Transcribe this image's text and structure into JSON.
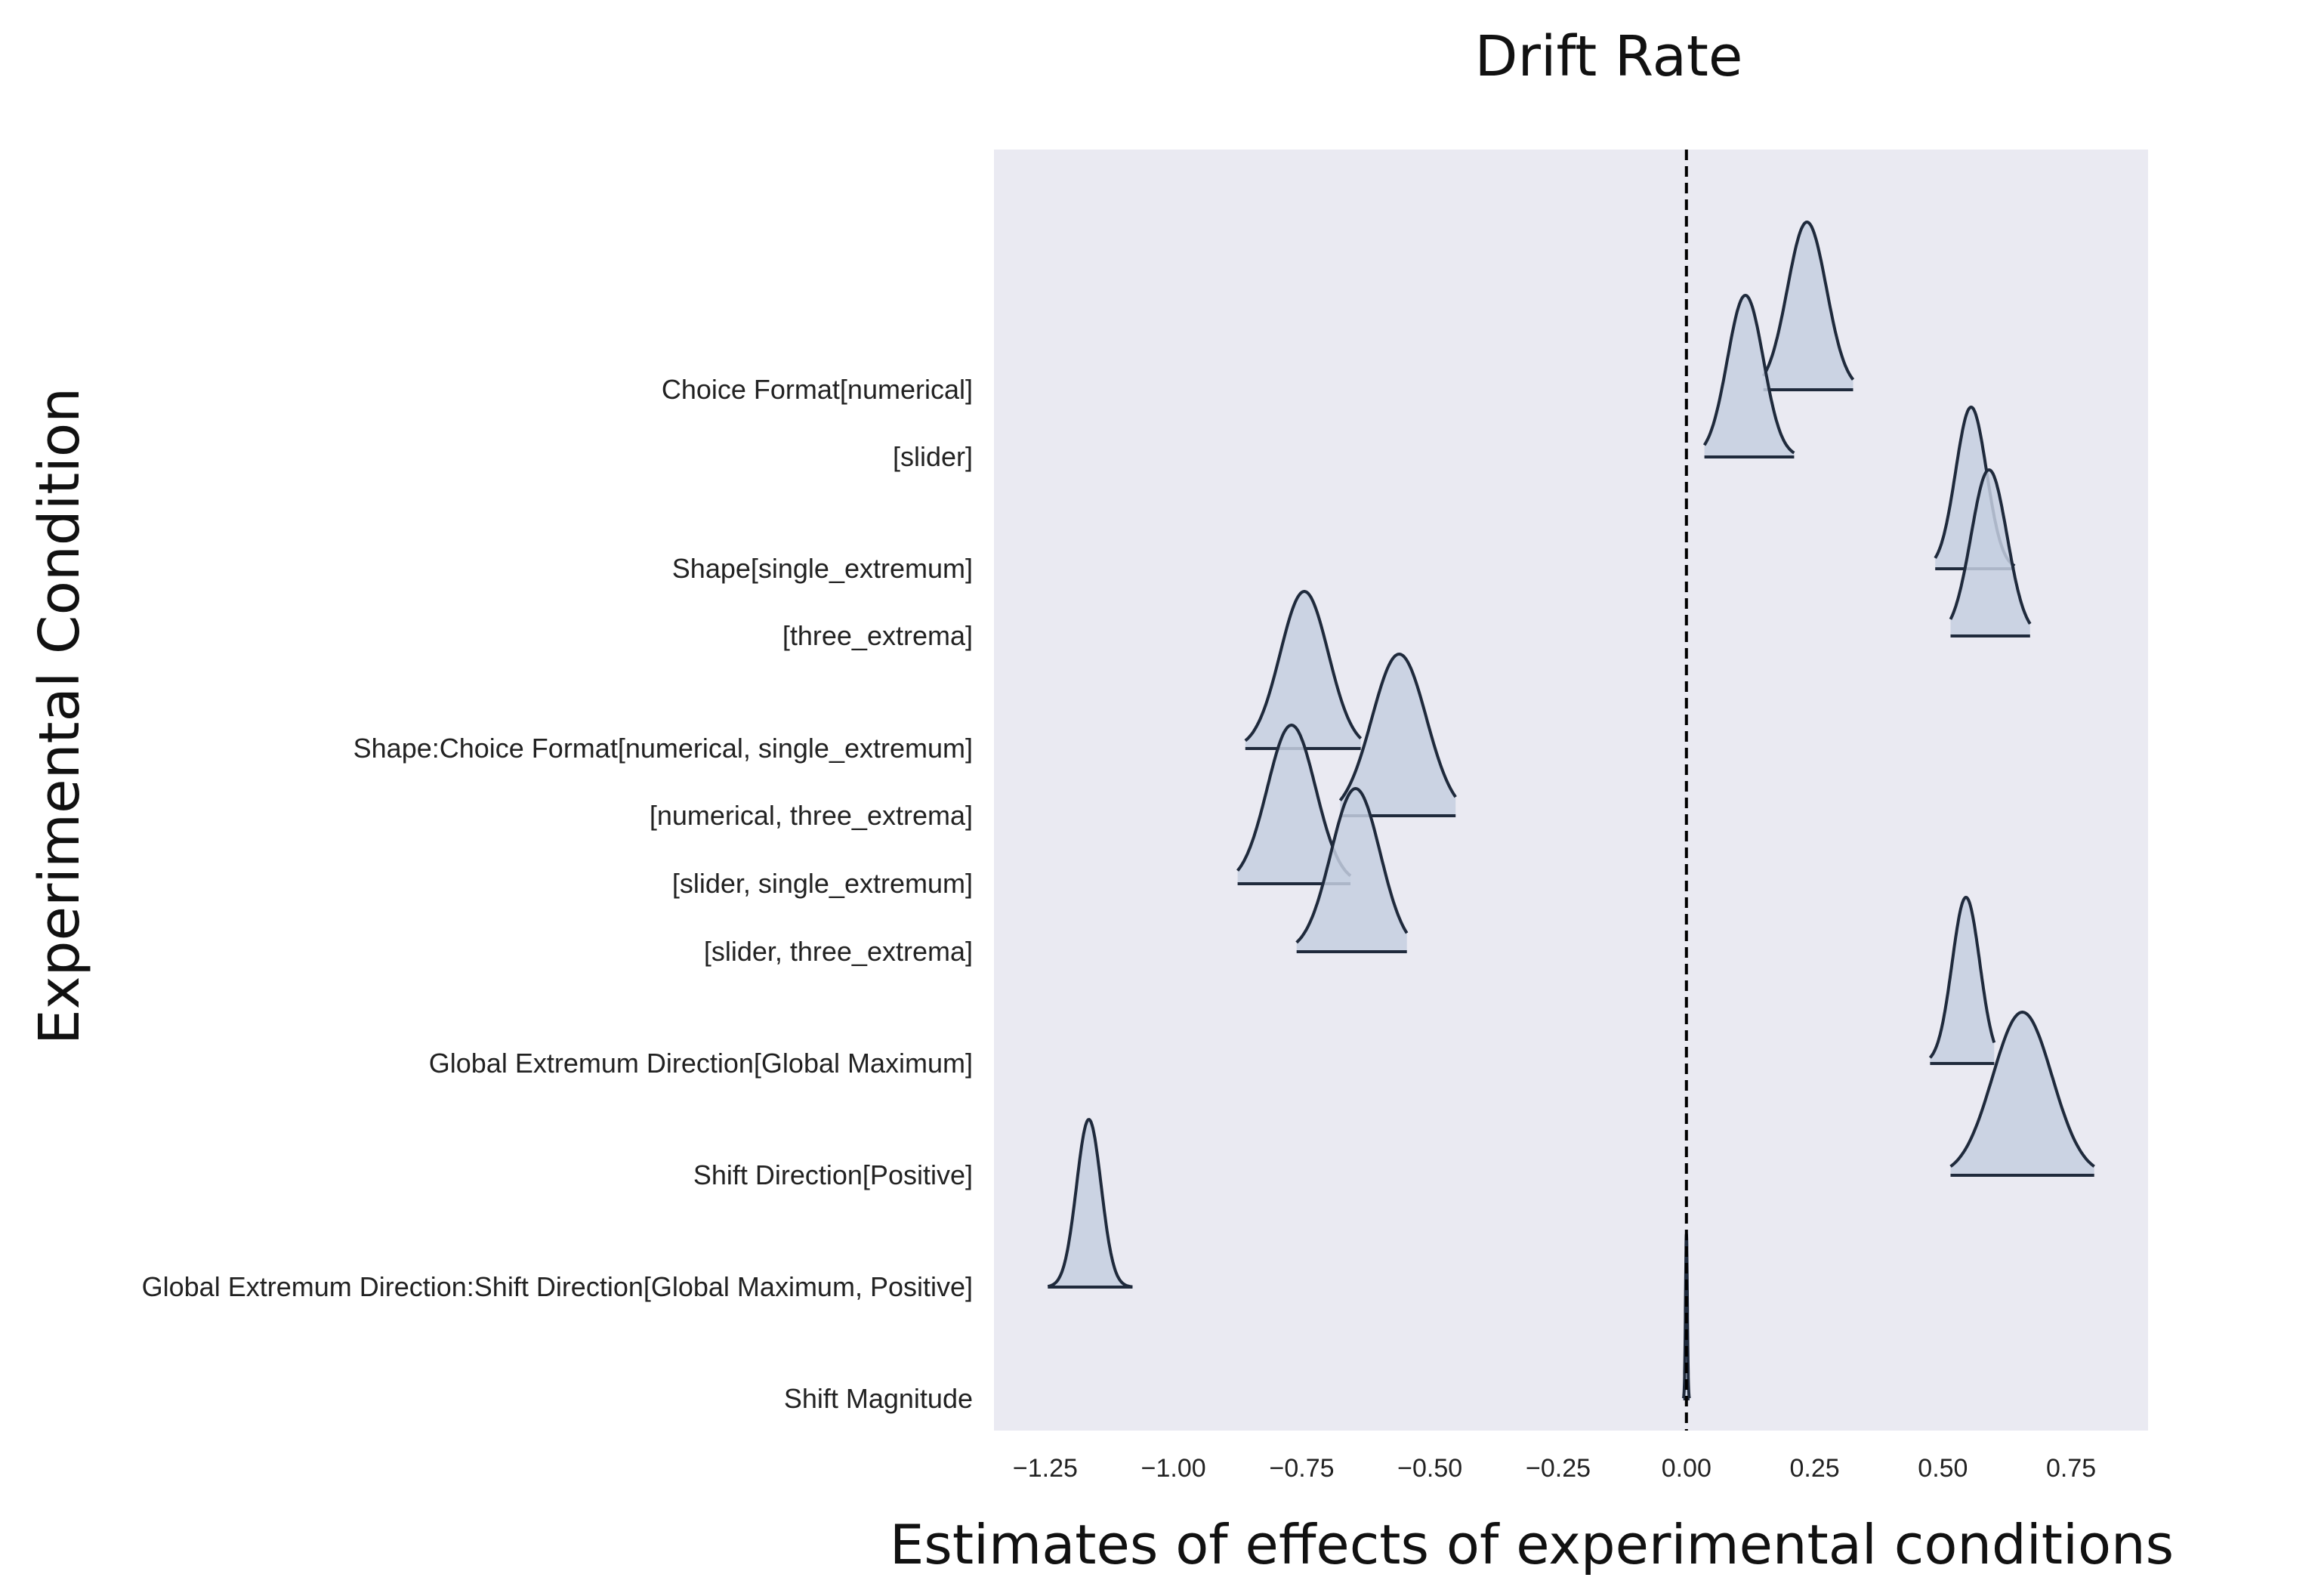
{
  "chart_data": {
    "type": "ridge",
    "title": "Drift Rate",
    "xlabel": "Estimates of effects of experimental conditions",
    "ylabel": "Experimental Condition",
    "xlim": [
      -1.35,
      0.9
    ],
    "xticks": [
      -1.25,
      -1.0,
      -0.75,
      -0.5,
      -0.25,
      0.0,
      0.25,
      0.5,
      0.75
    ],
    "xtick_labels": [
      "−1.25",
      "−1.00",
      "−0.75",
      "−0.50",
      "−0.25",
      "0.00",
      "0.25",
      "0.50",
      "0.75"
    ],
    "reference_line": 0.0,
    "grid": false,
    "categories": [
      {
        "label": "Choice Format[numerical]",
        "mean": 0.235,
        "sd": 0.038,
        "interval": [
          0.15,
          0.325
        ]
      },
      {
        "label": "[slider]",
        "mean": 0.115,
        "sd": 0.035,
        "interval": [
          0.035,
          0.21
        ]
      },
      {
        "label": "Shape[single_extremum]",
        "mean": 0.555,
        "sd": 0.03,
        "interval": [
          0.485,
          0.64
        ]
      },
      {
        "label": "[three_extrema]",
        "mean": 0.59,
        "sd": 0.035,
        "interval": [
          0.515,
          0.67
        ]
      },
      {
        "label": "Shape:Choice Format[numerical, single_extremum]",
        "mean": -0.745,
        "sd": 0.047,
        "interval": [
          -0.86,
          -0.635
        ]
      },
      {
        "label": "[numerical, three_extrema]",
        "mean": -0.56,
        "sd": 0.053,
        "interval": [
          -0.675,
          -0.45
        ]
      },
      {
        "label": "[slider, single_extremum]",
        "mean": -0.77,
        "sd": 0.047,
        "interval": [
          -0.875,
          -0.655
        ]
      },
      {
        "label": "[slider, three_extrema]",
        "mean": -0.645,
        "sd": 0.048,
        "interval": [
          -0.76,
          -0.545
        ]
      },
      {
        "label": "Global Extremum Direction[Global Maximum]",
        "mean": 0.545,
        "sd": 0.027,
        "interval": [
          0.475,
          0.6
        ]
      },
      {
        "label": "Shift Direction[Positive]",
        "mean": 0.655,
        "sd": 0.058,
        "interval": [
          0.515,
          0.795
        ]
      },
      {
        "label": "Global Extremum Direction:Shift Direction[Global Maximum, Positive]",
        "mean": -1.165,
        "sd": 0.024,
        "interval": [
          -1.245,
          -1.08
        ]
      },
      {
        "label": "Shift Magnitude",
        "mean": 0.0,
        "sd": 0.0018,
        "interval": [
          -0.006,
          0.006
        ]
      }
    ],
    "colors": {
      "plot_background": "#eaeaf2",
      "fill": "#c6cfe1",
      "line": "#1f2a3c",
      "reference": "#000000"
    }
  }
}
